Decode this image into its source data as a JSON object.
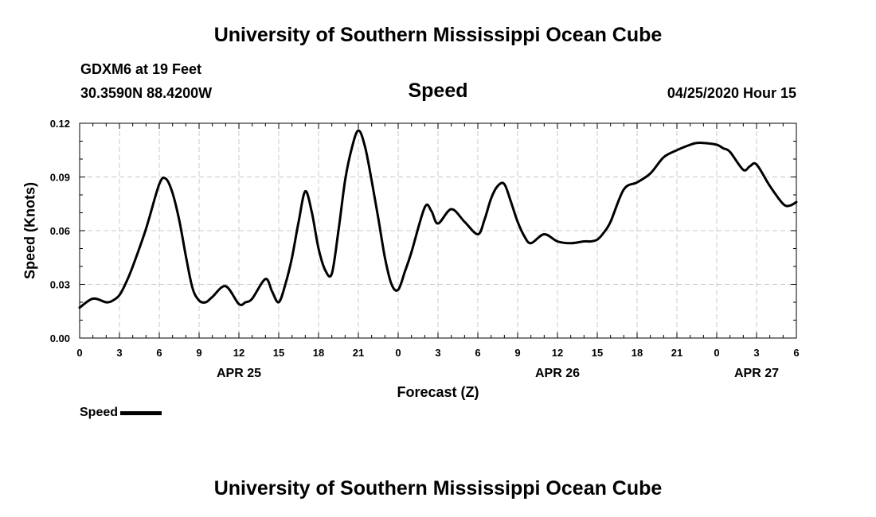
{
  "header": {
    "title": "University of Southern Mississippi Ocean Cube",
    "station": "GDXM6 at 19 Feet",
    "coords": "30.3590N 88.4200W",
    "datetime": "04/25/2020 Hour 15"
  },
  "footer": {
    "title": "University of Southern Mississippi Ocean Cube"
  },
  "chart_data": {
    "type": "line",
    "title": "Speed",
    "xlabel": "Forecast (Z)",
    "ylabel": "Speed (Knots)",
    "ylim": [
      0,
      0.12
    ],
    "y_ticks": [
      "0.00",
      "0.03",
      "0.06",
      "0.09",
      "0.12"
    ],
    "xlim_hours": [
      0,
      54
    ],
    "x_tick_labels": [
      "0",
      "3",
      "6",
      "9",
      "12",
      "15",
      "18",
      "21",
      "0",
      "3",
      "6",
      "9",
      "12",
      "15",
      "18",
      "21",
      "0",
      "3",
      "6"
    ],
    "date_labels": [
      {
        "label": "APR 25",
        "hour": 12
      },
      {
        "label": "APR 26",
        "hour": 36
      },
      {
        "label": "APR 27",
        "hour": 51
      }
    ],
    "grid": true,
    "legend": "bottom-left",
    "series": [
      {
        "name": "Speed",
        "color": "#000000",
        "x": [
          0,
          1,
          2,
          2.5,
          3,
          3.5,
          4,
          5,
          6,
          6.5,
          7,
          7.5,
          8,
          8.5,
          9,
          9.5,
          10,
          11,
          12,
          12.5,
          13,
          14,
          14.5,
          15,
          15.5,
          16,
          16.5,
          17,
          17.5,
          18,
          18.5,
          19,
          19.5,
          20,
          20.5,
          21,
          21.5,
          22,
          22.5,
          23,
          23.5,
          24,
          24.5,
          25,
          26,
          26.5,
          27,
          28,
          29,
          30,
          30.5,
          31,
          31.5,
          32,
          32.5,
          33,
          33.5,
          34,
          35,
          36,
          37,
          38,
          38.5,
          39,
          39.5,
          40,
          41,
          42,
          43,
          44,
          45,
          46,
          46.5,
          47,
          48,
          48.5,
          49,
          50,
          50.5,
          51,
          52,
          53,
          53.5,
          54
        ],
        "y": [
          0.017,
          0.022,
          0.02,
          0.021,
          0.024,
          0.031,
          0.04,
          0.061,
          0.086,
          0.089,
          0.081,
          0.066,
          0.046,
          0.028,
          0.021,
          0.02,
          0.023,
          0.029,
          0.019,
          0.02,
          0.022,
          0.033,
          0.026,
          0.02,
          0.03,
          0.045,
          0.065,
          0.082,
          0.07,
          0.05,
          0.038,
          0.036,
          0.06,
          0.088,
          0.106,
          0.116,
          0.107,
          0.088,
          0.067,
          0.045,
          0.03,
          0.027,
          0.037,
          0.048,
          0.073,
          0.071,
          0.064,
          0.072,
          0.065,
          0.058,
          0.066,
          0.078,
          0.085,
          0.086,
          0.076,
          0.065,
          0.057,
          0.053,
          0.058,
          0.054,
          0.053,
          0.054,
          0.054,
          0.055,
          0.059,
          0.065,
          0.083,
          0.087,
          0.092,
          0.101,
          0.105,
          0.108,
          0.109,
          0.109,
          0.108,
          0.106,
          0.104,
          0.094,
          0.096,
          0.097,
          0.085,
          0.075,
          0.074,
          0.076
        ]
      }
    ]
  }
}
